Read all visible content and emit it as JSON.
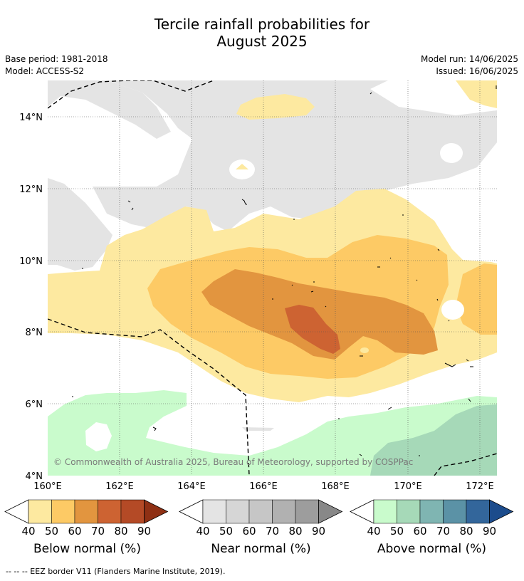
{
  "title_line1": "Tercile rainfall probabilities for",
  "title_line2": "August 2025",
  "base_period": "Base period: 1981-2018",
  "model": "Model: ACCESS-S2",
  "model_run": "Model run: 14/06/2025",
  "issued": "Issued: 16/06/2025",
  "copyright": "© Commonwealth of Australia 2025, Bureau of Meteorology, supported by COSPPac",
  "lat_labels": [
    "14°N",
    "12°N",
    "10°N",
    "8°N",
    "6°N",
    "4°N"
  ],
  "lon_labels": [
    "160°E",
    "162°E",
    "164°E",
    "166°E",
    "168°E",
    "170°E",
    "172°E"
  ],
  "colorbars": [
    {
      "title": "Below normal (%)",
      "ticks": [
        "40",
        "50",
        "60",
        "70",
        "80",
        "90"
      ],
      "colors": [
        "#fde9a0",
        "#fdca65",
        "#e2953f",
        "#cd6332",
        "#b44a26",
        "#8f3014"
      ]
    },
    {
      "title": "Near normal (%)",
      "ticks": [
        "40",
        "50",
        "60",
        "70",
        "80",
        "90"
      ],
      "colors": [
        "#e4e4e4",
        "#d6d6d6",
        "#c6c6c6",
        "#b1b1b1",
        "#9d9d9d",
        "#888888"
      ]
    },
    {
      "title": "Above normal (%)",
      "ticks": [
        "40",
        "50",
        "60",
        "70",
        "80",
        "90"
      ],
      "colors": [
        "#c9fbcc",
        "#a6d9b8",
        "#7fb5b2",
        "#5b92a6",
        "#33669b",
        "#1c4c8c"
      ]
    }
  ],
  "footer": "--  --  -- EEZ border V11 (Flanders Marine Institute, 2019).",
  "colors": {
    "below_40": "#fde9a0",
    "below_50": "#fdca65",
    "below_60": "#e2953f",
    "below_70": "#cd6332",
    "near_40": "#e4e4e4",
    "above_40": "#c9fbcc",
    "above_50": "#a6d9b8",
    "above_60": "#7fb5b2"
  }
}
